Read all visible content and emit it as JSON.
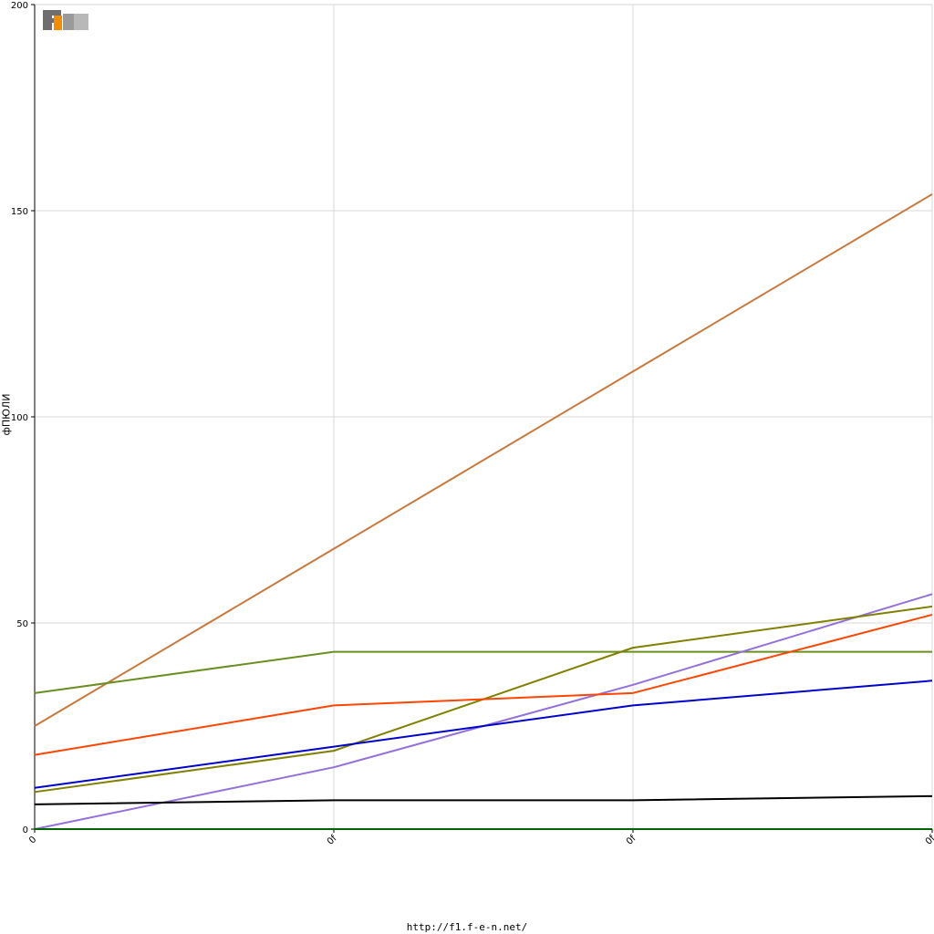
{
  "chart_data": {
    "type": "line",
    "title": "",
    "xlabel": "",
    "ylabel": "фПЮЛИ",
    "ylim": [
      0,
      200
    ],
    "yticks": [
      0,
      50,
      100,
      150,
      200
    ],
    "categories": [
      "0",
      "0f",
      "0f",
      "0f"
    ],
    "grid": true,
    "series": [
      {
        "color": "#c8783c",
        "values": [
          25,
          68,
          111,
          154
        ]
      },
      {
        "color": "#6b8e23",
        "values": [
          33,
          43,
          43,
          43
        ]
      },
      {
        "color": "#9370db",
        "values": [
          0,
          15,
          35,
          57
        ]
      },
      {
        "color": "#808000",
        "values": [
          9,
          19,
          44,
          54
        ]
      },
      {
        "color": "#ff4500",
        "values": [
          18,
          30,
          33,
          52
        ]
      },
      {
        "color": "#0000cd",
        "values": [
          10,
          20,
          30,
          36
        ]
      },
      {
        "color": "#000000",
        "values": [
          6,
          7,
          7,
          8
        ]
      },
      {
        "color": "#006400",
        "values": [
          0,
          0,
          0,
          0
        ]
      }
    ]
  },
  "logo": {
    "text": "F1EN"
  },
  "footer": {
    "url": "http://f1.f-e-n.net/"
  }
}
